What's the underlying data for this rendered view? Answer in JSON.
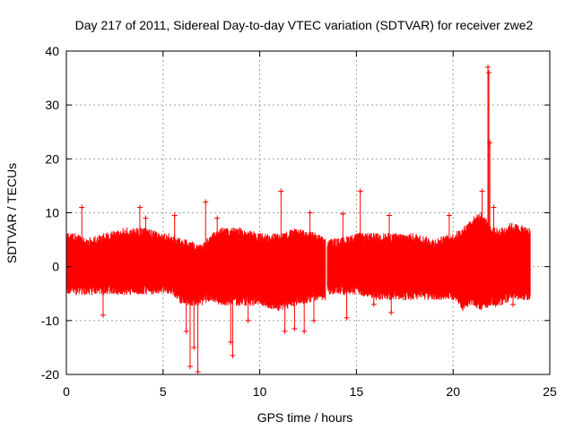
{
  "chart_data": {
    "type": "scatter",
    "title": "Day 217 of 2011, Sidereal Day-to-day VTEC variation (SDTVAR) for receiver zwe2",
    "xlabel": "GPS time / hours",
    "ylabel": "SDTVAR / TECUs",
    "xlim": [
      0,
      25
    ],
    "ylim": [
      -20,
      40
    ],
    "x_ticks": [
      0,
      5,
      10,
      15,
      20,
      25
    ],
    "y_ticks": [
      -20,
      -10,
      0,
      10,
      20,
      30,
      40
    ],
    "grid": true,
    "color": "#ff0000",
    "marker": "plus",
    "series": [
      {
        "name": "SDTVAR",
        "envelope": {
          "x": [
            0,
            0.5,
            1,
            2,
            3,
            4,
            5,
            5.5,
            6,
            7,
            7.5,
            8,
            9,
            10,
            11,
            12,
            13,
            13.4,
            13.5,
            14,
            15,
            16,
            17,
            18,
            19,
            20,
            20.5,
            21,
            21.5,
            22,
            22.5,
            23,
            24
          ],
          "upper": [
            5,
            5,
            4,
            5,
            6,
            6,
            5,
            5,
            4,
            3,
            5,
            6,
            6,
            5,
            5,
            6,
            5,
            4,
            4,
            4,
            5,
            5,
            5,
            5,
            4,
            5,
            6,
            8,
            9,
            6,
            6,
            7,
            6
          ],
          "lower": [
            -4,
            -4,
            -4,
            -4,
            -4,
            -4,
            -4,
            -4,
            -6,
            -6,
            -5,
            -6,
            -6,
            -6,
            -7,
            -6,
            -5,
            -5,
            -4,
            -4,
            -4,
            -5,
            -5,
            -5,
            -5,
            -5,
            -7,
            -6,
            -7,
            -6,
            -6,
            -5,
            -5
          ]
        },
        "points": [
          {
            "x": 0.8,
            "y": 11
          },
          {
            "x": 1.9,
            "y": -9
          },
          {
            "x": 3.8,
            "y": 11
          },
          {
            "x": 4.1,
            "y": 9
          },
          {
            "x": 5.6,
            "y": 9.5
          },
          {
            "x": 6.2,
            "y": -12
          },
          {
            "x": 6.4,
            "y": -18.5
          },
          {
            "x": 6.6,
            "y": -15
          },
          {
            "x": 6.8,
            "y": -19.5
          },
          {
            "x": 7.2,
            "y": 12
          },
          {
            "x": 7.8,
            "y": 9
          },
          {
            "x": 8.5,
            "y": -14
          },
          {
            "x": 8.6,
            "y": -16.5
          },
          {
            "x": 9.4,
            "y": -10
          },
          {
            "x": 10.3,
            "y": -7
          },
          {
            "x": 11.1,
            "y": 14
          },
          {
            "x": 11.3,
            "y": -12
          },
          {
            "x": 11.8,
            "y": -11.5
          },
          {
            "x": 12.3,
            "y": -12
          },
          {
            "x": 12.6,
            "y": 10
          },
          {
            "x": 12.8,
            "y": -10
          },
          {
            "x": 14.3,
            "y": 9.8
          },
          {
            "x": 14.5,
            "y": -9.5
          },
          {
            "x": 15.2,
            "y": 14
          },
          {
            "x": 15.9,
            "y": -7
          },
          {
            "x": 16.7,
            "y": 9.5
          },
          {
            "x": 16.8,
            "y": -8.5
          },
          {
            "x": 19.8,
            "y": 9.5
          },
          {
            "x": 21.5,
            "y": 14
          },
          {
            "x": 21.8,
            "y": 37
          },
          {
            "x": 21.85,
            "y": 36
          },
          {
            "x": 21.9,
            "y": 23
          },
          {
            "x": 22.1,
            "y": 11
          },
          {
            "x": 22.2,
            "y": -7
          },
          {
            "x": 23.1,
            "y": -7
          }
        ]
      }
    ],
    "gaps": [
      [
        13.4,
        13.5
      ]
    ]
  }
}
